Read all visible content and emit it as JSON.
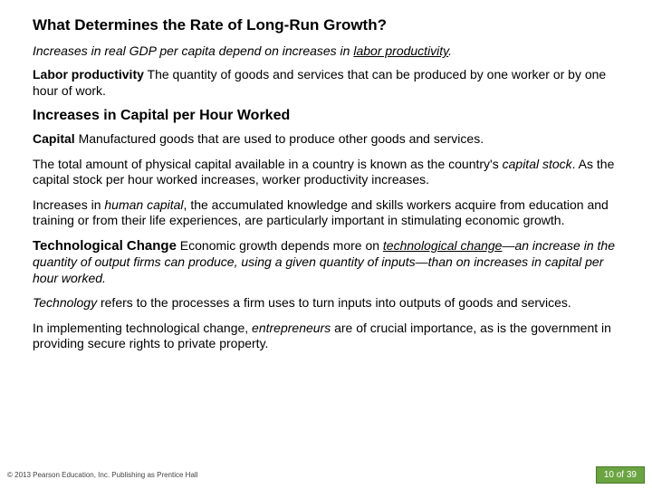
{
  "title": "What Determines the Rate of Long-Run Growth?",
  "intro_pre": "Increases in real GDP per capita depend on increases in ",
  "intro_u": "labor productivity",
  "intro_post": ".",
  "p1_term": "Labor productivity",
  "p1_rest": "   The quantity of goods and services that can be produced by one worker or by one hour of work.",
  "h2": "Increases in Capital per Hour Worked",
  "p2_term": "Capital",
  "p2_rest": "  Manufactured goods that are used to produce other goods and services.",
  "p3_a": "The total amount of physical capital available in a country is known as the country's ",
  "p3_i": "capital stock",
  "p3_b": ". As the capital stock per hour worked increases, worker productivity increases.",
  "p4_a": "Increases in ",
  "p4_i": "human capital",
  "p4_b": ", the accumulated knowledge and skills workers acquire from education and training or from their life experiences, are particularly important in stimulating economic growth.",
  "h3": "Technological Change",
  "p5_a": "  Economic growth depends more on ",
  "p5_iu": "technological change",
  "p5_b": "—an increase in the quantity of output firms can produce, using a given quantity of inputs—than on increases in capital per hour worked.",
  "p6_i": "Technology",
  "p6_b": " refers to the processes a firm uses to turn inputs into outputs of goods and services.",
  "p7_a": "In implementing technological change, ",
  "p7_i": "entrepreneurs",
  "p7_b": " are of crucial importance, as is the government in providing secure rights to private property.",
  "copyright": "© 2013 Pearson Education, Inc. Publishing as Prentice Hall",
  "page": "10 of 39",
  "colors": {
    "pageBg": "#6ba442",
    "pageBorder": "#4a7a2a"
  }
}
